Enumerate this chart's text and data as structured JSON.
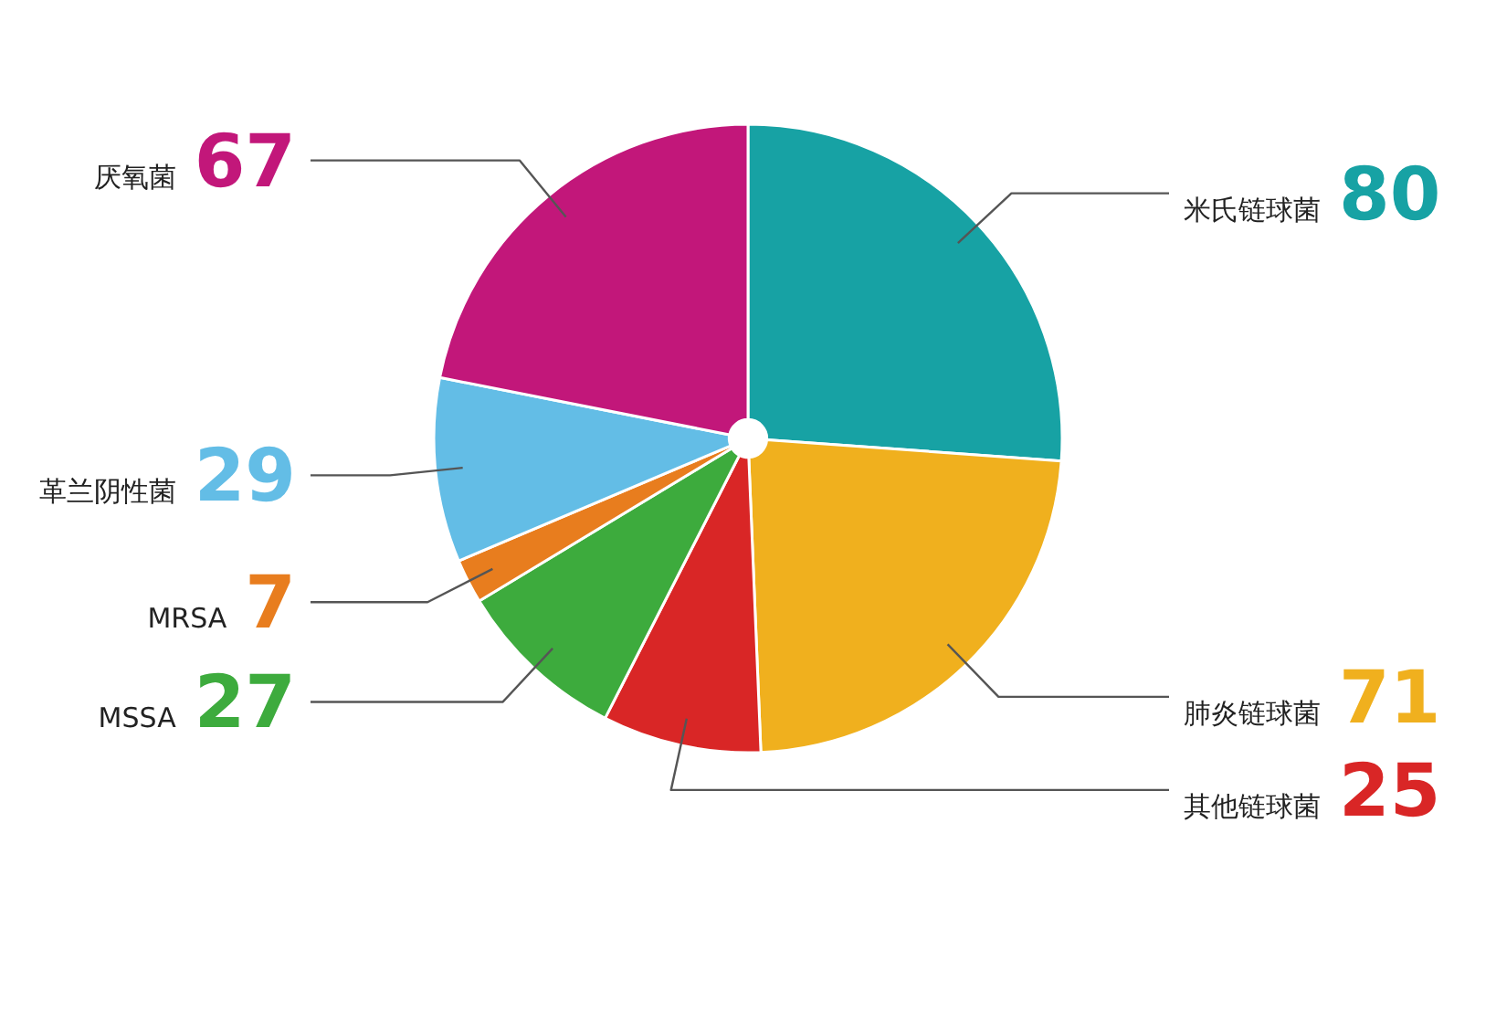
{
  "chart_data": {
    "type": "pie",
    "categories": [
      "米氏链球菌",
      "肺炎链球菌",
      "其他链球菌",
      "MSSA",
      "MRSA",
      "革兰阴性菌",
      "厌氧菌"
    ],
    "values": [
      80,
      71,
      25,
      27,
      7,
      29,
      67
    ],
    "colors": [
      "#17a2a4",
      "#f0b01e",
      "#d92626",
      "#3dab3d",
      "#e87d1e",
      "#63bde6",
      "#c2177a"
    ],
    "data_labels": true,
    "legend": false
  }
}
